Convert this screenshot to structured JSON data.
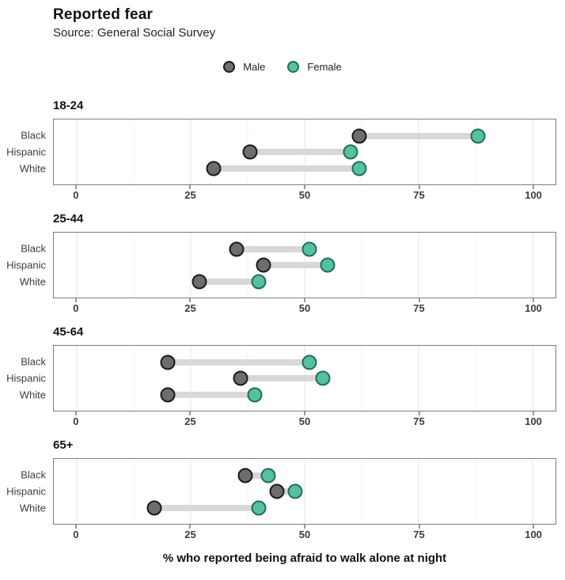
{
  "header": {
    "title": "Reported fear",
    "subtitle": "Source: General Social Survey"
  },
  "legend": {
    "items": [
      {
        "label": "Male",
        "fill": "#6d6d6d",
        "stroke": "#1a1a1a"
      },
      {
        "label": "Female",
        "fill": "#56c0a0",
        "stroke": "#1f6e5a"
      }
    ]
  },
  "chart_data": {
    "type": "dumbbell",
    "title": "Reported fear",
    "subtitle": "Source: General Social Survey",
    "xlabel": "% who reported being afraid to walk alone at night",
    "ylabel": "",
    "xlim": [
      -5,
      105
    ],
    "x_ticks": [
      0,
      25,
      50,
      75,
      100
    ],
    "x_minor_ticks": [
      12.5,
      37.5,
      62.5,
      87.5
    ],
    "grid": true,
    "legend_position": "top-center",
    "series_names": [
      "Male",
      "Female"
    ],
    "colors": {
      "male_fill": "#6d6d6d",
      "male_stroke": "#1a1a1a",
      "female_fill": "#56c0a0",
      "female_stroke": "#1f6e5a",
      "connector": "#d8d8d8"
    },
    "facets": [
      {
        "label": "18-24",
        "rows": [
          {
            "category": "Black",
            "male": 62,
            "female": 88
          },
          {
            "category": "Hispanic",
            "male": 38,
            "female": 60
          },
          {
            "category": "White",
            "male": 30,
            "female": 62
          }
        ]
      },
      {
        "label": "25-44",
        "rows": [
          {
            "category": "Black",
            "male": 35,
            "female": 51
          },
          {
            "category": "Hispanic",
            "male": 41,
            "female": 55
          },
          {
            "category": "White",
            "male": 27,
            "female": 40
          }
        ]
      },
      {
        "label": "45-64",
        "rows": [
          {
            "category": "Black",
            "male": 20,
            "female": 51
          },
          {
            "category": "Hispanic",
            "male": 36,
            "female": 54
          },
          {
            "category": "White",
            "male": 20,
            "female": 39
          }
        ]
      },
      {
        "label": "65+",
        "rows": [
          {
            "category": "Black",
            "male": 37,
            "female": 42
          },
          {
            "category": "Hispanic",
            "male": 44,
            "female": 48
          },
          {
            "category": "White",
            "male": 17,
            "female": 40
          }
        ]
      }
    ]
  }
}
